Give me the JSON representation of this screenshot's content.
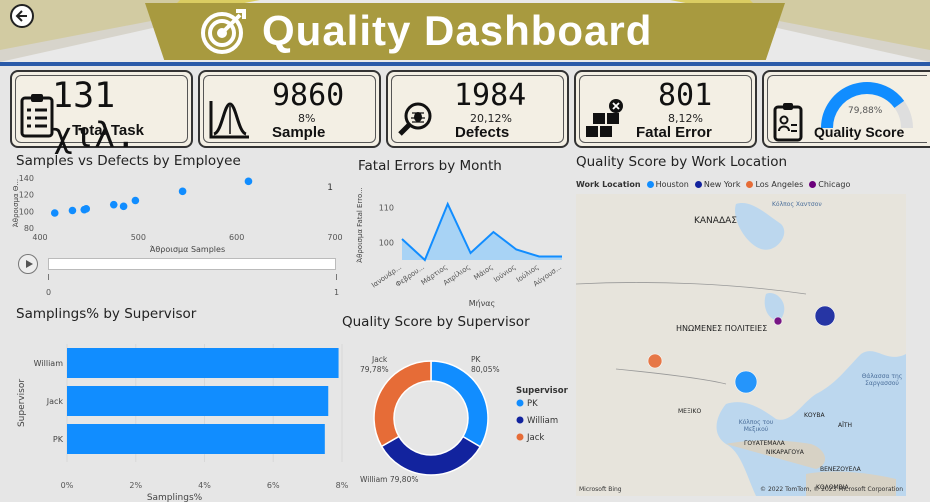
{
  "header": {
    "title": "Quality Dashboard",
    "back_icon": "back-arrow-icon"
  },
  "kpis": [
    {
      "value": "131 χιλ.",
      "label": "Total Task",
      "icon": "clipboard-list-icon"
    },
    {
      "value": "9860",
      "pct": "8%",
      "label": "Sample",
      "icon": "bell-curve-icon"
    },
    {
      "value": "1984",
      "pct": "20,12%",
      "label": "Defects",
      "icon": "bug-magnifier-icon"
    },
    {
      "value": "801",
      "pct": "8,12%",
      "label": "Fatal Error",
      "icon": "boxes-error-icon"
    },
    {
      "value": "79,88%",
      "label": "Quality Score",
      "icon": "clipboard-person-icon",
      "gauge": 0.7988
    }
  ],
  "scatter": {
    "title": "Samples vs Defects by Employee",
    "xlabel": "Άθροισμα Samples",
    "ylabel": "Άθροισμα Θ...",
    "xticks": [
      "400",
      "500",
      "600",
      "700"
    ],
    "yticks": [
      "140",
      "120",
      "100",
      "80"
    ],
    "legend_value": "1",
    "slider_min": "0",
    "slider_max": "1"
  },
  "fatal": {
    "title": "Fatal Errors by Month",
    "xlabel": "Μήνας",
    "ylabel": "Άθροισμα Fatal Erro...",
    "yticks": [
      "110",
      "100"
    ]
  },
  "bar": {
    "title": "Samplings% by Supervisor",
    "xlabel": "Samplings%",
    "ylabel": "Supervisor",
    "xticks": [
      "0%",
      "2%",
      "4%",
      "6%",
      "8%"
    ]
  },
  "donut": {
    "title": "Quality Score by Supervisor",
    "legend_title": "Supervisor",
    "labels": [
      {
        "text": "PK",
        "value": "80,05%"
      },
      {
        "text": "Jack",
        "value": "79,78%"
      },
      {
        "text": "William 79,80%",
        "value": ""
      }
    ]
  },
  "map": {
    "title": "Quality Score by Work Location",
    "legend_title": "Work Location",
    "locations": [
      {
        "name": "Houston",
        "color": "#118dff"
      },
      {
        "name": "New York",
        "color": "#12239e"
      },
      {
        "name": "Los Angeles",
        "color": "#e66c37"
      },
      {
        "name": "Chicago",
        "color": "#6b007b"
      }
    ],
    "labels": [
      "ΚΑΝΑΔΑΣ",
      "Κόλπος Χαντσον",
      "ΗΝΩΜΕΝΕΣ ΠΟΛΙΤΕΙΕΣ",
      "Κόλπος του Μεξικού",
      "ΜΕΞΙΚΟ",
      "ΚΟΥΒΑ",
      "ΑΪΤΗ",
      "ΓΟΥΑΤΕΜΑΛΑ",
      "ΝΙΚΑΡΑΓΟΥΑ",
      "ΚΟΛΟΜΒΙΑ",
      "ΒΕΝΕΖΟΥΕΛΑ",
      "Θάλασσα της Σαργασσού"
    ],
    "attribution": "© 2022 TomTom, © 2023 Microsoft Corporation",
    "bing": "Microsoft Bing"
  },
  "chart_data": [
    {
      "type": "scatter",
      "title": "Samples vs Defects by Employee",
      "xlabel": "Άθροισμα Samples",
      "ylabel": "Άθροισμα Θ...",
      "xlim": [
        400,
        700
      ],
      "ylim": [
        80,
        140
      ],
      "points": [
        {
          "x": 415,
          "y": 98
        },
        {
          "x": 433,
          "y": 101
        },
        {
          "x": 445,
          "y": 102
        },
        {
          "x": 447,
          "y": 103
        },
        {
          "x": 475,
          "y": 108
        },
        {
          "x": 485,
          "y": 106
        },
        {
          "x": 497,
          "y": 113
        },
        {
          "x": 545,
          "y": 124
        },
        {
          "x": 612,
          "y": 136
        }
      ]
    },
    {
      "type": "area",
      "title": "Fatal Errors by Month",
      "xlabel": "Μήνας",
      "ylabel": "Άθροισμα Fatal Erro...",
      "categories": [
        "Ιανουάρ...",
        "Φεβρου...",
        "Μάρτιος",
        "Απρίλιος",
        "Μάιος",
        "Ιούνιος",
        "Ιούλιος",
        "Αύγουσ..."
      ],
      "values": [
        101,
        95,
        111,
        97,
        103,
        98,
        96,
        96
      ],
      "ylim": [
        95,
        115
      ]
    },
    {
      "type": "bar",
      "title": "Samplings% by Supervisor",
      "xlabel": "Samplings%",
      "ylabel": "Supervisor",
      "categories": [
        "William",
        "Jack",
        "PK"
      ],
      "values": [
        7.9,
        7.6,
        7.5
      ],
      "xlim": [
        0,
        8
      ]
    },
    {
      "type": "pie",
      "title": "Quality Score by Supervisor",
      "categories": [
        "PK",
        "William",
        "Jack"
      ],
      "values": [
        80.05,
        79.8,
        79.78
      ],
      "colors": [
        "#118dff",
        "#12239e",
        "#e66c37"
      ]
    }
  ]
}
